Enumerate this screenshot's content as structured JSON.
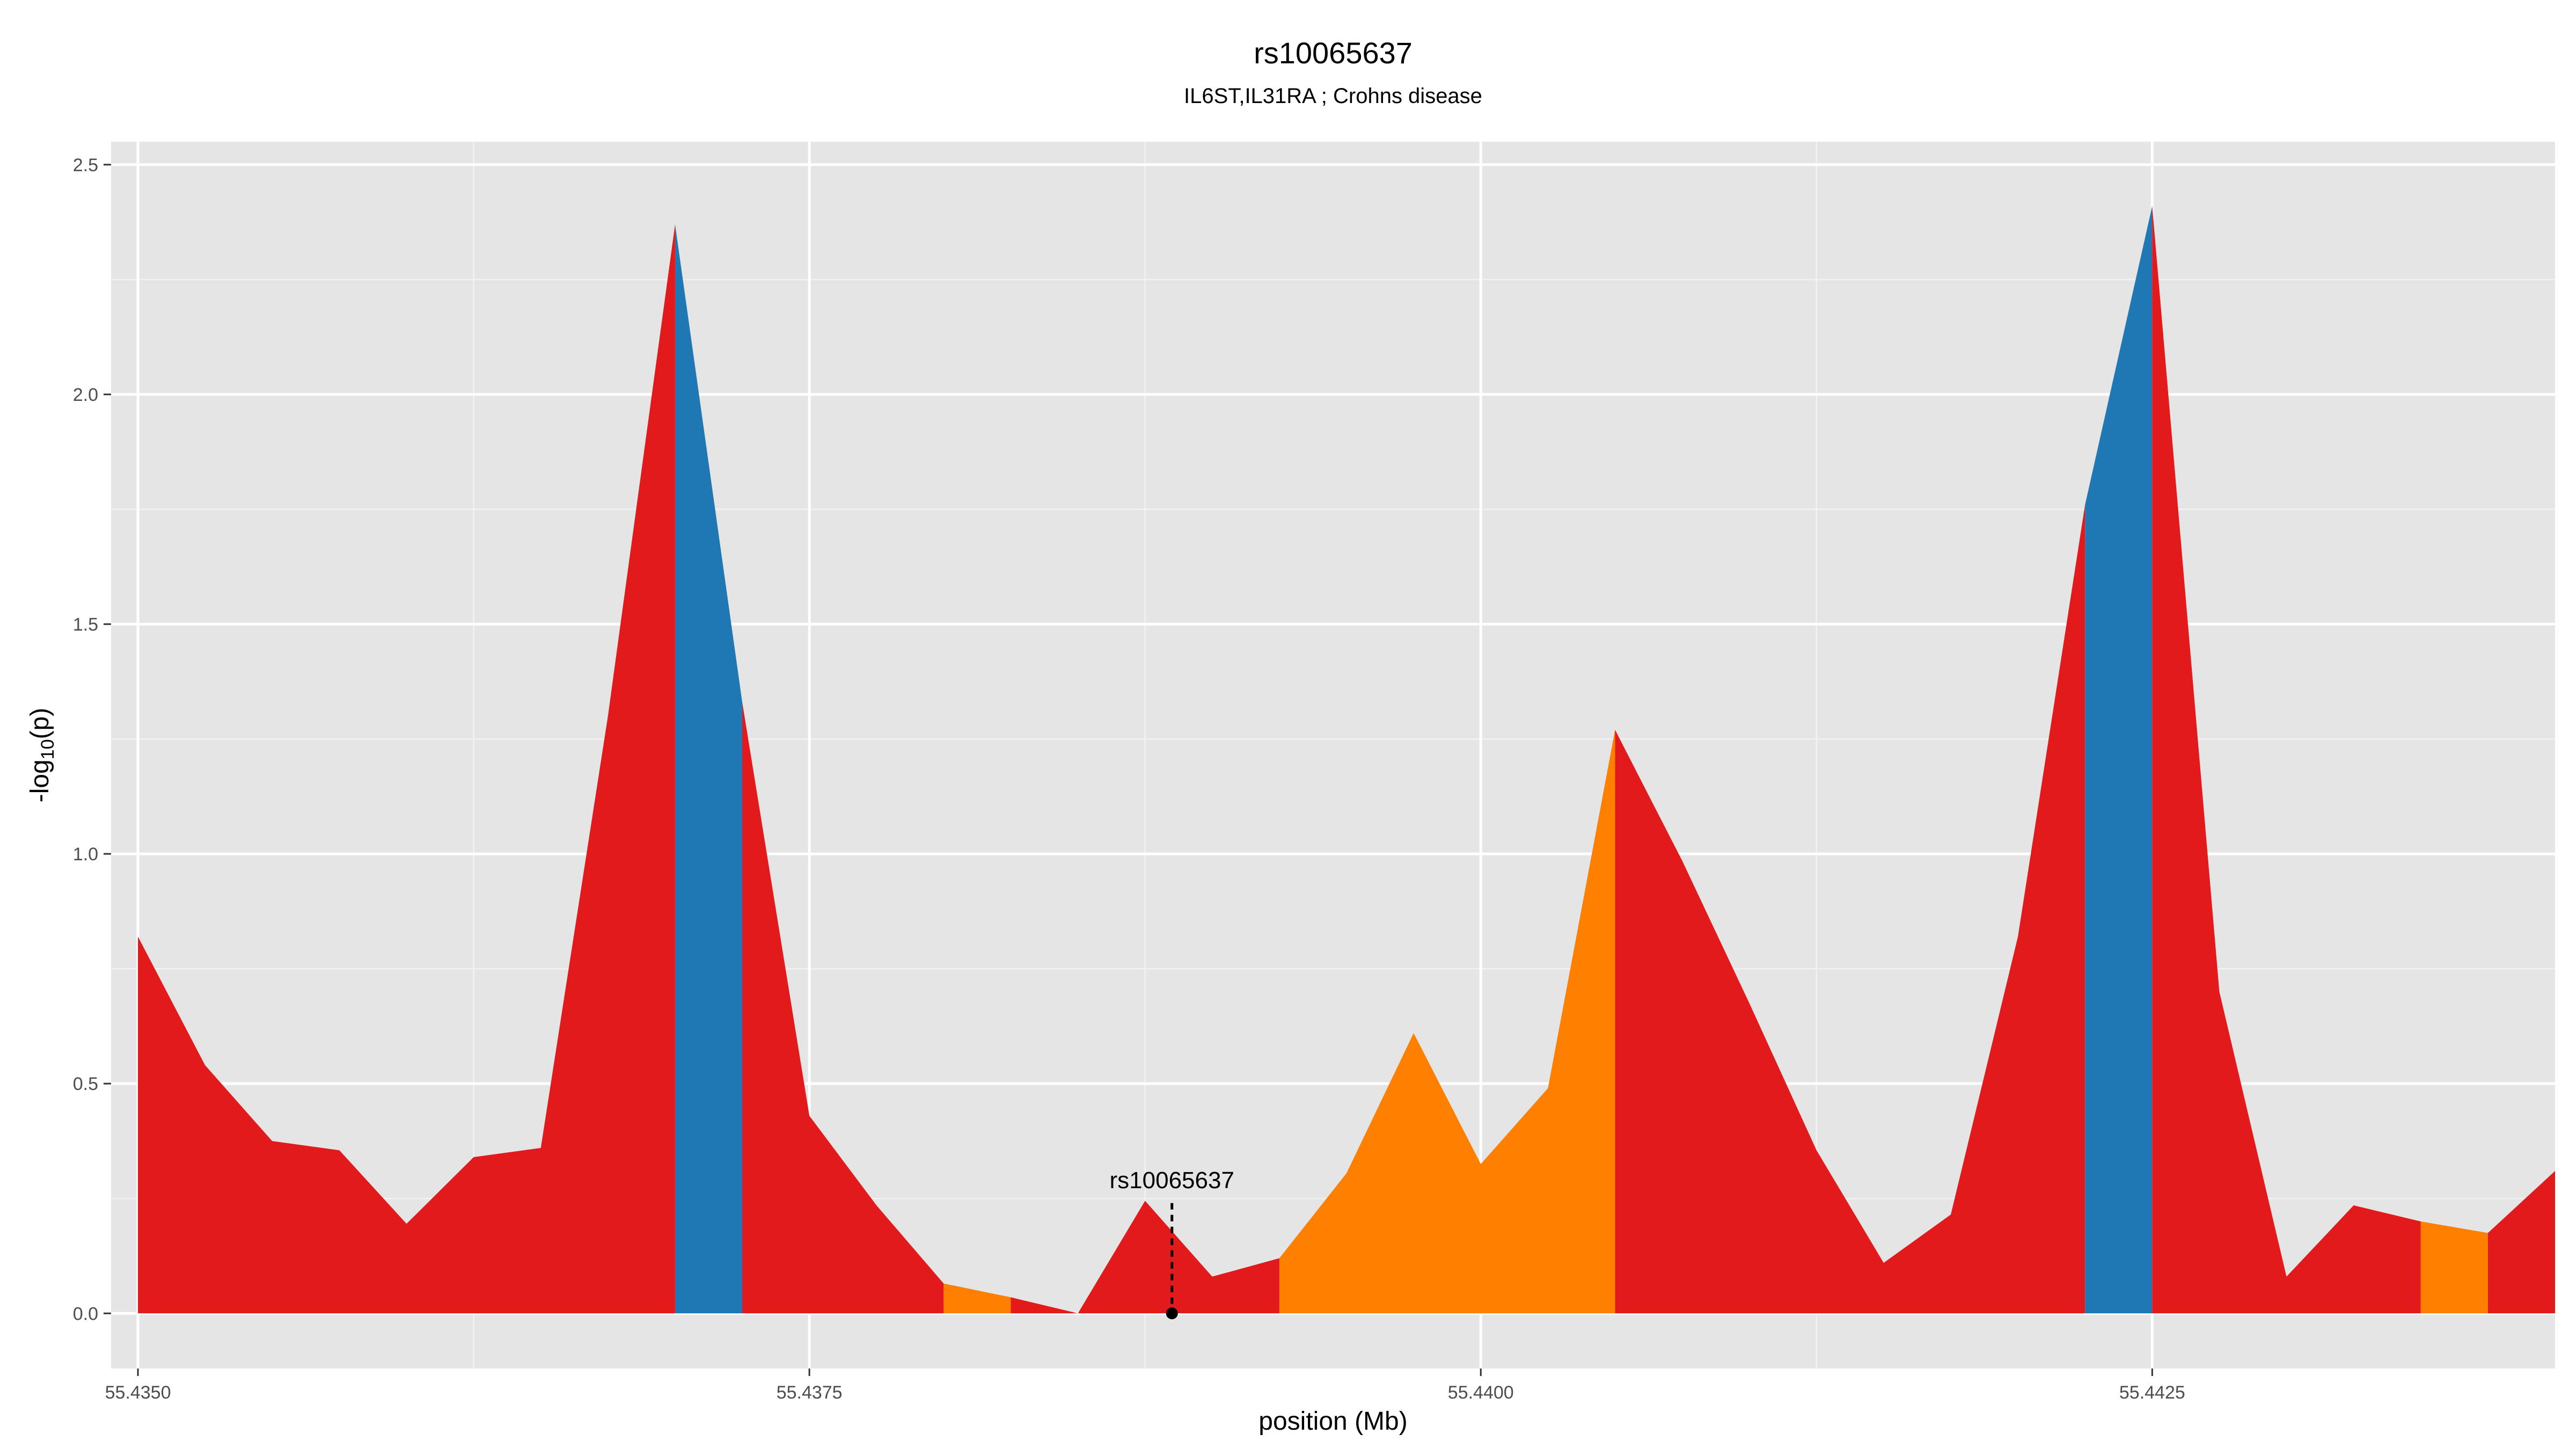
{
  "chart_data": {
    "type": "area",
    "title": "rs10065637",
    "subtitle": "IL6ST,IL31RA ; Crohns disease",
    "xlabel": "position (Mb)",
    "ylabel_main": "-log",
    "ylabel_sub": "10",
    "ylabel_tail": "(p)",
    "xlim": [
      55.4349,
      55.444
    ],
    "ylim": [
      -0.12,
      2.55
    ],
    "xticks": [
      55.435,
      55.4375,
      55.44,
      55.4425
    ],
    "xtick_labels": [
      "55.4350",
      "55.4375",
      "55.4400",
      "55.4425"
    ],
    "yticks": [
      0,
      0.5,
      1,
      1.5,
      2,
      2.5
    ],
    "ytick_labels": [
      "0.0",
      "0.5",
      "1.0",
      "1.5",
      "2.0",
      "2.5"
    ],
    "grid": true,
    "background_color": "#e5e5e5",
    "colors": {
      "red": "#e31a1c",
      "blue": "#1f78b4",
      "orange": "#ff7f00"
    },
    "segments": [
      {
        "color": "red",
        "x": [
          55.435,
          55.43525,
          55.4355,
          55.43575,
          55.436,
          55.43625,
          55.4365,
          55.43675,
          55.437
        ],
        "y": [
          0.82,
          0.54,
          0.375,
          0.355,
          0.195,
          0.34,
          0.36,
          1.3,
          2.37
        ]
      },
      {
        "color": "blue",
        "x": [
          55.437,
          55.43725
        ],
        "y": [
          2.37,
          1.33
        ]
      },
      {
        "color": "red",
        "x": [
          55.43725,
          55.4375,
          55.43775,
          55.438
        ],
        "y": [
          1.33,
          0.43,
          0.235,
          0.065
        ]
      },
      {
        "color": "orange",
        "x": [
          55.438,
          55.43825
        ],
        "y": [
          0.065,
          0.035
        ]
      },
      {
        "color": "red",
        "x": [
          55.43825,
          55.4385,
          55.43875,
          55.439,
          55.43925
        ],
        "y": [
          0.035,
          0.0,
          0.245,
          0.08,
          0.12
        ]
      },
      {
        "color": "orange",
        "x": [
          55.43925,
          55.4395,
          55.43975,
          55.44,
          55.44025,
          55.4405
        ],
        "y": [
          0.12,
          0.305,
          0.61,
          0.325,
          0.49,
          1.27
        ]
      },
      {
        "color": "red",
        "x": [
          55.4405,
          55.44075,
          55.441,
          55.44125,
          55.4415,
          55.44175,
          55.442,
          55.44225
        ],
        "y": [
          1.27,
          0.985,
          0.675,
          0.355,
          0.11,
          0.215,
          0.82,
          1.76
        ]
      },
      {
        "color": "blue",
        "x": [
          55.44225,
          55.4425
        ],
        "y": [
          1.76,
          2.41
        ]
      },
      {
        "color": "red",
        "x": [
          55.4425,
          55.44275,
          55.443,
          55.44325,
          55.4435
        ],
        "y": [
          2.41,
          0.7,
          0.08,
          0.235,
          0.2
        ]
      },
      {
        "color": "orange",
        "x": [
          55.4435,
          55.44375
        ],
        "y": [
          0.2,
          0.175
        ]
      },
      {
        "color": "red",
        "x": [
          55.44375,
          55.444
        ],
        "y": [
          0.175,
          0.31
        ]
      }
    ],
    "marker": {
      "label": "rs10065637",
      "x": 55.43885,
      "y": 0,
      "line_top": 0.24
    }
  }
}
